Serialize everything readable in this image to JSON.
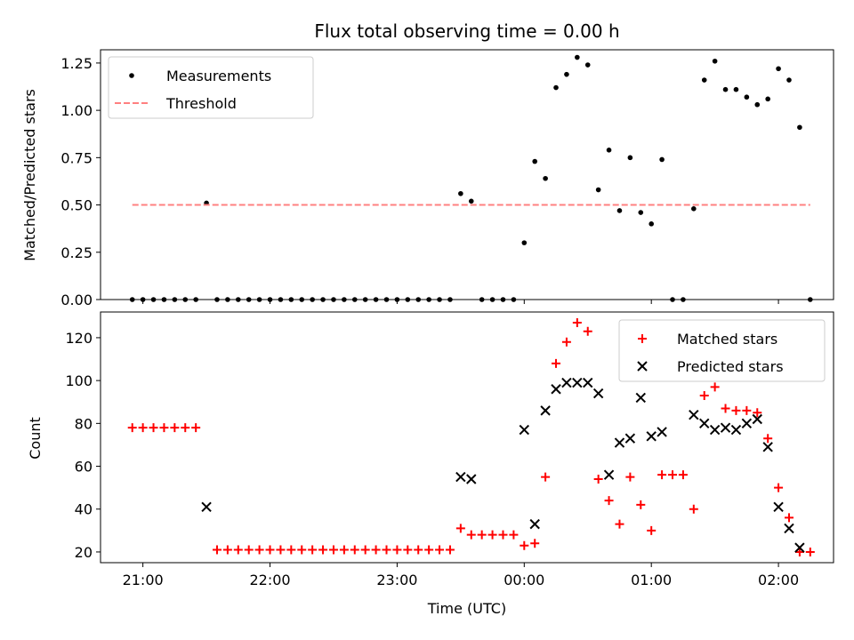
{
  "chart_data": [
    {
      "type": "scatter",
      "title": "Flux total observing time = 0.00 h",
      "xlabel": "",
      "ylabel": "Matched/Predicted stars",
      "ylim": [
        0,
        1.32
      ],
      "yticks": [
        "0.00",
        "0.25",
        "0.50",
        "0.75",
        "1.00",
        "1.25"
      ],
      "grid": false,
      "legend_position": "upper-left",
      "series": [
        {
          "name": "Measurements",
          "color": "#000000",
          "marker": "dot",
          "points": [
            [
              -125,
              0
            ],
            [
              -120,
              0
            ],
            [
              -115,
              0
            ],
            [
              -110,
              0
            ],
            [
              -105,
              0
            ],
            [
              -100,
              0
            ],
            [
              -95,
              0
            ],
            [
              -90,
              0.51
            ],
            [
              -85,
              0
            ],
            [
              -80,
              0
            ],
            [
              -75,
              0
            ],
            [
              -70,
              0
            ],
            [
              -65,
              0
            ],
            [
              -60,
              0
            ],
            [
              -55,
              0
            ],
            [
              -50,
              0
            ],
            [
              -45,
              0
            ],
            [
              -40,
              0
            ],
            [
              -35,
              0
            ],
            [
              -30,
              0
            ],
            [
              -25,
              0
            ],
            [
              -20,
              0
            ],
            [
              -15,
              0
            ],
            [
              -10,
              0
            ],
            [
              -5,
              0
            ],
            [
              0,
              0
            ],
            [
              5,
              0
            ],
            [
              10,
              0
            ],
            [
              15,
              0
            ],
            [
              20,
              0
            ],
            [
              25,
              0
            ],
            [
              30,
              0.56
            ],
            [
              35,
              0.52
            ],
            [
              40,
              0
            ],
            [
              45,
              0
            ],
            [
              50,
              0
            ],
            [
              55,
              0
            ],
            [
              60,
              0.3
            ],
            [
              65,
              0.73
            ],
            [
              70,
              0.64
            ],
            [
              75,
              1.12
            ],
            [
              80,
              1.19
            ],
            [
              85,
              1.28
            ],
            [
              90,
              1.24
            ],
            [
              95,
              0.58
            ],
            [
              100,
              0.79
            ],
            [
              105,
              0.47
            ],
            [
              110,
              0.75
            ],
            [
              115,
              0.46
            ],
            [
              120,
              0.4
            ],
            [
              125,
              0.74
            ],
            [
              130,
              0
            ],
            [
              135,
              0
            ],
            [
              140,
              0.48
            ],
            [
              145,
              1.16
            ],
            [
              150,
              1.26
            ],
            [
              155,
              1.11
            ],
            [
              160,
              1.11
            ],
            [
              165,
              1.07
            ],
            [
              170,
              1.03
            ],
            [
              175,
              1.06
            ],
            [
              180,
              1.22
            ],
            [
              185,
              1.16
            ],
            [
              190,
              0.91
            ],
            [
              195,
              0
            ]
          ]
        },
        {
          "name": "Threshold",
          "color": "#ff8080",
          "style": "dashed",
          "points": [
            [
              -125,
              0.5
            ],
            [
              195,
              0.5
            ]
          ]
        }
      ]
    },
    {
      "type": "scatter",
      "title": "",
      "xlabel": "Time (UTC)",
      "ylabel": "Count",
      "xlim": [
        -140,
        206
      ],
      "xticks": [
        {
          "value": -120,
          "label": "21:00"
        },
        {
          "value": -60,
          "label": "22:00"
        },
        {
          "value": 0,
          "label": "23:00"
        },
        {
          "value": 60,
          "label": "00:00"
        },
        {
          "value": 120,
          "label": "01:00"
        },
        {
          "value": 180,
          "label": "02:00"
        }
      ],
      "ylim": [
        15,
        132
      ],
      "yticks": [
        "20",
        "40",
        "60",
        "80",
        "100",
        "120"
      ],
      "grid": false,
      "legend_position": "upper-right",
      "series": [
        {
          "name": "Matched stars",
          "color": "#ff0000",
          "marker": "plus",
          "points": [
            [
              -125,
              78
            ],
            [
              -120,
              78
            ],
            [
              -115,
              78
            ],
            [
              -110,
              78
            ],
            [
              -105,
              78
            ],
            [
              -100,
              78
            ],
            [
              -95,
              78
            ],
            [
              -85,
              21
            ],
            [
              -80,
              21
            ],
            [
              -75,
              21
            ],
            [
              -70,
              21
            ],
            [
              -65,
              21
            ],
            [
              -60,
              21
            ],
            [
              -55,
              21
            ],
            [
              -50,
              21
            ],
            [
              -45,
              21
            ],
            [
              -40,
              21
            ],
            [
              -35,
              21
            ],
            [
              -30,
              21
            ],
            [
              -25,
              21
            ],
            [
              -20,
              21
            ],
            [
              -15,
              21
            ],
            [
              -10,
              21
            ],
            [
              -5,
              21
            ],
            [
              0,
              21
            ],
            [
              5,
              21
            ],
            [
              10,
              21
            ],
            [
              15,
              21
            ],
            [
              20,
              21
            ],
            [
              25,
              21
            ],
            [
              30,
              31
            ],
            [
              35,
              28
            ],
            [
              40,
              28
            ],
            [
              45,
              28
            ],
            [
              50,
              28
            ],
            [
              55,
              28
            ],
            [
              60,
              23
            ],
            [
              65,
              24
            ],
            [
              70,
              55
            ],
            [
              75,
              108
            ],
            [
              80,
              118
            ],
            [
              85,
              127
            ],
            [
              90,
              123
            ],
            [
              95,
              54
            ],
            [
              100,
              44
            ],
            [
              105,
              33
            ],
            [
              110,
              55
            ],
            [
              115,
              42
            ],
            [
              120,
              30
            ],
            [
              125,
              56
            ],
            [
              130,
              56
            ],
            [
              135,
              56
            ],
            [
              140,
              40
            ],
            [
              145,
              93
            ],
            [
              150,
              97
            ],
            [
              155,
              87
            ],
            [
              160,
              86
            ],
            [
              165,
              86
            ],
            [
              170,
              85
            ],
            [
              175,
              73
            ],
            [
              180,
              50
            ],
            [
              185,
              36
            ],
            [
              190,
              20
            ],
            [
              195,
              20
            ]
          ]
        },
        {
          "name": "Predicted stars",
          "color": "#000000",
          "marker": "x",
          "points": [
            [
              -90,
              41
            ],
            [
              30,
              55
            ],
            [
              35,
              54
            ],
            [
              60,
              77
            ],
            [
              65,
              33
            ],
            [
              70,
              86
            ],
            [
              75,
              96
            ],
            [
              80,
              99
            ],
            [
              85,
              99
            ],
            [
              90,
              99
            ],
            [
              95,
              94
            ],
            [
              100,
              56
            ],
            [
              105,
              71
            ],
            [
              110,
              73
            ],
            [
              115,
              92
            ],
            [
              120,
              74
            ],
            [
              125,
              76
            ],
            [
              140,
              84
            ],
            [
              145,
              80
            ],
            [
              150,
              77
            ],
            [
              155,
              78
            ],
            [
              160,
              77
            ],
            [
              165,
              80
            ],
            [
              170,
              82
            ],
            [
              175,
              69
            ],
            [
              180,
              41
            ],
            [
              185,
              31
            ],
            [
              190,
              22
            ]
          ]
        }
      ]
    }
  ]
}
